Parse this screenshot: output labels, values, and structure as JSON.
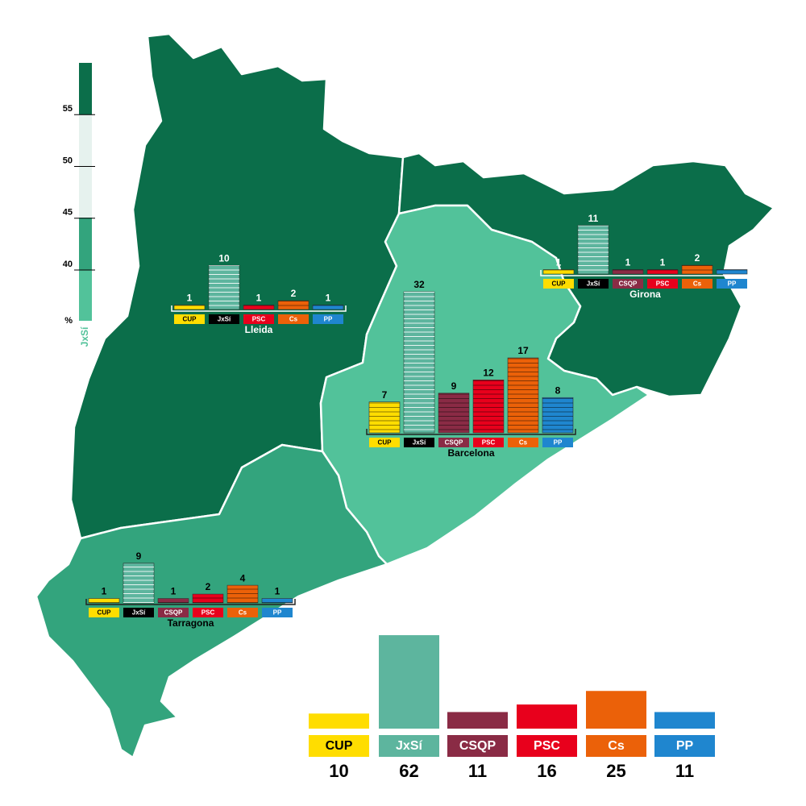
{
  "legend": {
    "title": "JxSí",
    "unit": "%",
    "ticks": [
      40,
      45,
      50,
      55
    ]
  },
  "party_colors": {
    "CUP": "#ffdd00",
    "JxSí": "#5db59e",
    "CSQP": "#8a2b45",
    "PSC": "#e8001c",
    "Cs": "#eb6109",
    "PP": "#1f86cf"
  },
  "regions": [
    {
      "name": "Lleida",
      "parties": [
        "CUP",
        "JxSí",
        "PSC",
        "Cs",
        "PP"
      ],
      "seats": [
        1,
        10,
        1,
        2,
        1
      ]
    },
    {
      "name": "Girona",
      "parties": [
        "CUP",
        "JxSí",
        "CSQP",
        "PSC",
        "Cs",
        "PP"
      ],
      "seats": [
        1,
        11,
        1,
        1,
        2,
        1
      ]
    },
    {
      "name": "Barcelona",
      "parties": [
        "CUP",
        "JxSí",
        "CSQP",
        "PSC",
        "Cs",
        "PP"
      ],
      "seats": [
        7,
        32,
        9,
        12,
        17,
        8
      ]
    },
    {
      "name": "Tarragona",
      "parties": [
        "CUP",
        "JxSí",
        "CSQP",
        "PSC",
        "Cs",
        "PP"
      ],
      "seats": [
        1,
        9,
        1,
        2,
        4,
        1
      ]
    }
  ],
  "totals": {
    "parties": [
      "CUP",
      "JxSí",
      "CSQP",
      "PSC",
      "Cs",
      "PP"
    ],
    "seats": [
      10,
      62,
      11,
      16,
      25,
      11
    ]
  }
}
